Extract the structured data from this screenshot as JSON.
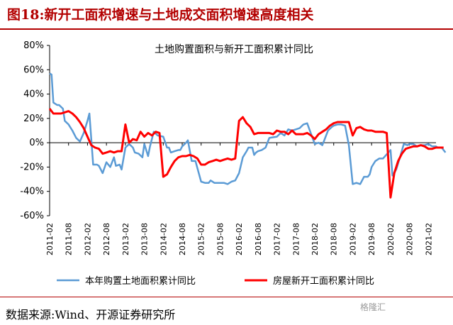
{
  "figure": {
    "title": "图18:新开工面积增速与土地成交面积增速高度相关",
    "source": "数据来源:Wind、开源证券研究所",
    "watermark": "格隆汇"
  },
  "chart_data": {
    "type": "line",
    "title": "土地购置面积与新开工面积累计同比",
    "xlabel": "",
    "ylabel": "",
    "ylim": [
      -60,
      80
    ],
    "yticks": [
      "80%",
      "60%",
      "40%",
      "20%",
      "0%",
      "-20%",
      "-40%",
      "-60%"
    ],
    "xticks": [
      "2011-02",
      "2011-08",
      "2012-02",
      "2012-08",
      "2013-02",
      "2013-08",
      "2014-02",
      "2014-08",
      "2015-02",
      "2015-08",
      "2016-02",
      "2016-08",
      "2017-02",
      "2017-08",
      "2018-02",
      "2018-08",
      "2019-02",
      "2019-08",
      "2020-02",
      "2020-08",
      "2021-02"
    ],
    "legend_position": "bottom",
    "grid": false,
    "series": [
      {
        "name": "本年购置土地面积累计同比",
        "color": "#5b9bd5",
        "values": [
          [
            0,
            57
          ],
          [
            0.1,
            56
          ],
          [
            0.2,
            33
          ],
          [
            0.4,
            31
          ],
          [
            0.5,
            31
          ],
          [
            0.7,
            28
          ],
          [
            0.8,
            18
          ],
          [
            1,
            15
          ],
          [
            1.2,
            10
          ],
          [
            1.4,
            4
          ],
          [
            1.6,
            1
          ],
          [
            1.8,
            8
          ],
          [
            2.0,
            18
          ],
          [
            2.1,
            24
          ],
          [
            2.3,
            -18
          ],
          [
            2.5,
            -18
          ],
          [
            2.6,
            -19
          ],
          [
            2.8,
            -25
          ],
          [
            3.0,
            -16
          ],
          [
            3.2,
            -20
          ],
          [
            3.4,
            -12
          ],
          [
            3.5,
            -19
          ],
          [
            3.7,
            -18
          ],
          [
            3.8,
            -22
          ],
          [
            4.0,
            -4
          ],
          [
            4.2,
            -1
          ],
          [
            4.4,
            -4
          ],
          [
            4.5,
            -8
          ],
          [
            4.7,
            -9
          ],
          [
            4.9,
            -12
          ],
          [
            5.0,
            -1
          ],
          [
            5.2,
            -11
          ],
          [
            5.3,
            -3
          ],
          [
            5.5,
            9
          ],
          [
            5.7,
            6
          ],
          [
            6.0,
            5
          ],
          [
            6.2,
            -4
          ],
          [
            6.3,
            -4
          ],
          [
            6.4,
            -8
          ],
          [
            6.6,
            -7
          ],
          [
            6.8,
            -6
          ],
          [
            6.9,
            -6
          ],
          [
            7.0,
            -3
          ],
          [
            7.2,
            0
          ],
          [
            7.3,
            2
          ],
          [
            7.5,
            -15
          ],
          [
            7.7,
            -15
          ],
          [
            8.0,
            -32
          ],
          [
            8.2,
            -33
          ],
          [
            8.4,
            -33
          ],
          [
            8.5,
            -31
          ],
          [
            8.7,
            -33
          ],
          [
            8.9,
            -33
          ],
          [
            9.0,
            -33
          ],
          [
            9.2,
            -33
          ],
          [
            9.4,
            -34
          ],
          [
            9.6,
            -32
          ],
          [
            9.8,
            -31
          ],
          [
            10.0,
            -25
          ],
          [
            10.2,
            -12
          ],
          [
            10.4,
            -7
          ],
          [
            10.5,
            -4
          ],
          [
            10.7,
            -4
          ],
          [
            10.8,
            -10
          ],
          [
            10.9,
            -8
          ],
          [
            11.0,
            -7
          ],
          [
            11.2,
            -6
          ],
          [
            11.4,
            -4
          ],
          [
            11.6,
            4
          ],
          [
            12.0,
            5
          ],
          [
            12.2,
            8
          ],
          [
            12.4,
            6
          ],
          [
            12.6,
            11
          ],
          [
            12.8,
            10
          ],
          [
            13.0,
            11
          ],
          [
            13.2,
            12
          ],
          [
            13.4,
            15
          ],
          [
            13.6,
            16
          ],
          [
            14.0,
            -1
          ],
          [
            14.2,
            0
          ],
          [
            14.4,
            -2
          ],
          [
            14.5,
            2
          ],
          [
            14.7,
            10
          ],
          [
            14.9,
            13
          ],
          [
            15.0,
            14
          ],
          [
            15.2,
            15
          ],
          [
            15.4,
            15
          ],
          [
            15.6,
            14
          ],
          [
            15.8,
            -2
          ],
          [
            16.0,
            -34
          ],
          [
            16.2,
            -33
          ],
          [
            16.4,
            -34
          ],
          [
            16.5,
            -31
          ],
          [
            16.6,
            -28
          ],
          [
            16.8,
            -28
          ],
          [
            16.9,
            -26
          ],
          [
            17.0,
            -20
          ],
          [
            17.2,
            -15
          ],
          [
            17.4,
            -13
          ],
          [
            17.6,
            -13
          ],
          [
            18.0,
            -6
          ],
          [
            18.1,
            -27
          ],
          [
            18.3,
            -22
          ],
          [
            18.5,
            -12
          ],
          [
            18.7,
            -1
          ],
          [
            18.9,
            -2
          ],
          [
            19.0,
            -1
          ],
          [
            19.2,
            -1
          ],
          [
            19.4,
            -3
          ],
          [
            19.6,
            -2
          ],
          [
            19.8,
            -2
          ],
          [
            20.0,
            -1
          ],
          [
            20.2,
            -3
          ],
          [
            20.4,
            -3
          ],
          [
            20.5,
            -4
          ],
          [
            20.7,
            -4
          ],
          [
            20.9,
            -8
          ]
        ]
      },
      {
        "name": "房屋新开工面积累计同比",
        "color": "#ff0000",
        "values": [
          [
            0,
            28
          ],
          [
            0.2,
            24
          ],
          [
            0.4,
            24
          ],
          [
            0.6,
            24
          ],
          [
            0.8,
            25
          ],
          [
            1,
            26
          ],
          [
            1.2,
            24
          ],
          [
            1.4,
            21
          ],
          [
            1.6,
            17
          ],
          [
            1.8,
            12
          ],
          [
            2.0,
            5
          ],
          [
            2.2,
            -2
          ],
          [
            2.4,
            -4
          ],
          [
            2.6,
            -5
          ],
          [
            2.8,
            -9
          ],
          [
            3.0,
            -8
          ],
          [
            3.2,
            -7
          ],
          [
            3.4,
            -8
          ],
          [
            3.6,
            -7
          ],
          [
            3.8,
            -7
          ],
          [
            4.0,
            15
          ],
          [
            4.2,
            0
          ],
          [
            4.4,
            3
          ],
          [
            4.6,
            2
          ],
          [
            4.8,
            9
          ],
          [
            5.0,
            5
          ],
          [
            5.2,
            8
          ],
          [
            5.4,
            6
          ],
          [
            5.6,
            9
          ],
          [
            5.8,
            8
          ],
          [
            6.0,
            -28
          ],
          [
            6.2,
            -26
          ],
          [
            6.4,
            -20
          ],
          [
            6.6,
            -15
          ],
          [
            6.8,
            -12
          ],
          [
            7.0,
            -11
          ],
          [
            7.2,
            -11
          ],
          [
            7.4,
            -10
          ],
          [
            7.6,
            -11
          ],
          [
            7.8,
            -13
          ],
          [
            8.0,
            -18
          ],
          [
            8.2,
            -18
          ],
          [
            8.4,
            -16
          ],
          [
            8.6,
            -15
          ],
          [
            8.8,
            -14
          ],
          [
            9.0,
            -15
          ],
          [
            9.2,
            -14
          ],
          [
            9.4,
            -13
          ],
          [
            9.6,
            -14
          ],
          [
            9.8,
            -13
          ],
          [
            10.0,
            18
          ],
          [
            10.2,
            21
          ],
          [
            10.4,
            16
          ],
          [
            10.6,
            13
          ],
          [
            10.8,
            7
          ],
          [
            11.0,
            8
          ],
          [
            11.2,
            8
          ],
          [
            11.4,
            8
          ],
          [
            11.6,
            8
          ],
          [
            11.8,
            7
          ],
          [
            12.0,
            10
          ],
          [
            12.2,
            9
          ],
          [
            12.4,
            9
          ],
          [
            12.6,
            7
          ],
          [
            12.8,
            10
          ],
          [
            13.0,
            7
          ],
          [
            13.2,
            7
          ],
          [
            13.4,
            7
          ],
          [
            13.6,
            8
          ],
          [
            13.8,
            6
          ],
          [
            14.0,
            3
          ],
          [
            14.2,
            7
          ],
          [
            14.4,
            9
          ],
          [
            14.6,
            11
          ],
          [
            14.8,
            14
          ],
          [
            15.0,
            16
          ],
          [
            15.2,
            17
          ],
          [
            15.4,
            17
          ],
          [
            15.6,
            17
          ],
          [
            15.8,
            17
          ],
          [
            16.0,
            6
          ],
          [
            16.2,
            12
          ],
          [
            16.4,
            13
          ],
          [
            16.6,
            11
          ],
          [
            16.8,
            10
          ],
          [
            17.0,
            10
          ],
          [
            17.2,
            9
          ],
          [
            17.4,
            9
          ],
          [
            17.6,
            9
          ],
          [
            17.8,
            8
          ],
          [
            18.0,
            -45
          ],
          [
            18.2,
            -25
          ],
          [
            18.4,
            -15
          ],
          [
            18.6,
            -9
          ],
          [
            18.8,
            -5
          ],
          [
            19.0,
            -4
          ],
          [
            19.2,
            -3
          ],
          [
            19.4,
            -3
          ],
          [
            19.6,
            -2
          ],
          [
            19.8,
            -3
          ],
          [
            20.0,
            -5
          ],
          [
            20.2,
            -5
          ],
          [
            20.4,
            -4
          ],
          [
            20.6,
            -4
          ],
          [
            20.8,
            -4
          ]
        ]
      }
    ]
  }
}
